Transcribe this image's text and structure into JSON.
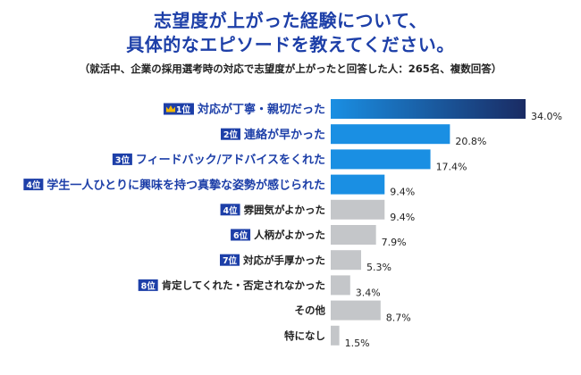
{
  "header": {
    "title_line1": "志望度が上がった経験について、",
    "title_line2": "具体的なエピソードを教えてください。",
    "subtitle": "（就活中、企業の採用選考時の対応で志望度が上がったと回答した人：265名、複数回答）"
  },
  "colors": {
    "title": "#1d3fa8",
    "rank_badge": "#1d3fa8",
    "crown": "#f2b705",
    "bar_gradient_dark": "#1a2b63",
    "bar_gradient_light": "#1a8fe3",
    "bar_blue": "#1a8fe3",
    "bar_gray": "#c4c6c9"
  },
  "icons": {
    "first_place": "crown-icon"
  },
  "chart_data": {
    "type": "bar",
    "orientation": "horizontal",
    "unit": "%",
    "xlim": [
      0,
      34.0
    ],
    "grid": false,
    "categories": [
      "対応が丁寧・親切だった",
      "連絡が早かった",
      "フィードバック/アドバイスをくれた",
      "学生一人ひとりに興味を持つ真摯な姿勢が感じられた",
      "雰囲気がよかった",
      "人柄がよかった",
      "対応が手厚かった",
      "肯定してくれた・否定されなかった",
      "その他",
      "特になし"
    ],
    "ranks": [
      "1位",
      "2位",
      "3位",
      "4位",
      "4位",
      "6位",
      "7位",
      "8位",
      "",
      ""
    ],
    "values": [
      34.0,
      20.8,
      17.4,
      9.4,
      9.4,
      7.9,
      5.3,
      3.4,
      8.7,
      1.5
    ],
    "value_labels": [
      "34.0%",
      "20.8%",
      "17.4%",
      "9.4%",
      "9.4%",
      "7.9%",
      "5.3%",
      "3.4%",
      "8.7%",
      "1.5%"
    ],
    "highlight": [
      true,
      true,
      true,
      true,
      false,
      false,
      false,
      false,
      false,
      false
    ]
  }
}
